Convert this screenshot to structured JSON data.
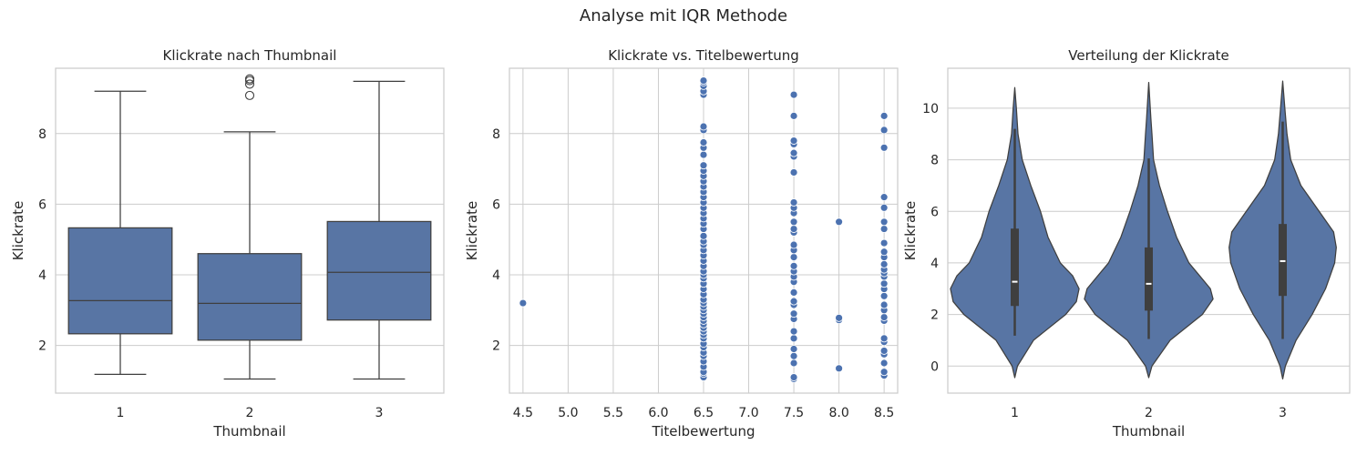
{
  "figure": {
    "suptitle": "Analyse mit IQR Methode"
  },
  "colors": {
    "fill": "#5875a4",
    "edge": "#3f3f3f",
    "point": "#4c72b0",
    "grid": "#cccccc",
    "frame": "#cccccc",
    "median_violin": "#ffffff"
  },
  "chart_data": [
    {
      "type": "box",
      "title": "Klickrate nach Thumbnail",
      "xlabel": "Thumbnail",
      "ylabel": "Klickrate",
      "categories": [
        "1",
        "2",
        "3"
      ],
      "ylim": [
        0.65,
        9.85
      ],
      "yticks": [
        2,
        4,
        6,
        8
      ],
      "grid": true,
      "boxes": [
        {
          "category": "1",
          "whisker_low": 1.18,
          "q1": 2.33,
          "median": 3.27,
          "q3": 5.33,
          "whisker_high": 9.2,
          "outliers": []
        },
        {
          "category": "2",
          "whisker_low": 1.05,
          "q1": 2.15,
          "median": 3.19,
          "q3": 4.6,
          "whisker_high": 8.05,
          "outliers": [
            9.08,
            9.4,
            9.5,
            9.55
          ]
        },
        {
          "category": "3",
          "whisker_low": 1.05,
          "q1": 2.72,
          "median": 4.07,
          "q3": 5.51,
          "whisker_high": 9.48,
          "outliers": []
        }
      ]
    },
    {
      "type": "scatter",
      "title": "Klickrate vs. Titelbewertung",
      "xlabel": "Titelbewertung",
      "ylabel": "Klickrate",
      "xlim": [
        4.35,
        8.65
      ],
      "ylim": [
        0.65,
        9.85
      ],
      "xticks": [
        4.5,
        5.0,
        5.5,
        6.0,
        6.5,
        7.0,
        7.5,
        8.0,
        8.5
      ],
      "xtick_labels": [
        "4.5",
        "5.0",
        "5.5",
        "6.0",
        "6.5",
        "7.0",
        "7.5",
        "8.0",
        "8.5"
      ],
      "yticks": [
        2,
        4,
        6,
        8
      ],
      "grid": true,
      "points": [
        {
          "x": 4.5,
          "y": 3.2
        },
        {
          "x": 6.5,
          "ys": [
            1.1,
            1.2,
            1.25,
            1.4,
            1.55,
            1.7,
            1.8,
            1.95,
            2.05,
            2.2,
            2.3,
            2.4,
            2.5,
            2.6,
            2.7,
            2.8,
            2.9,
            3.0,
            3.1,
            3.2,
            3.3,
            3.45,
            3.6,
            3.75,
            3.9,
            4.0,
            4.1,
            4.25,
            4.4,
            4.55,
            4.7,
            4.85,
            4.95,
            5.1,
            5.3,
            5.45,
            5.6,
            5.75,
            5.9,
            6.05,
            6.2,
            6.35,
            6.5,
            6.65,
            6.8,
            6.95,
            7.1,
            7.4,
            7.6,
            7.75,
            8.1,
            8.2,
            9.1,
            9.2,
            9.35,
            9.45,
            9.5
          ]
        },
        {
          "x": 7.5,
          "ys": [
            1.05,
            1.1,
            1.5,
            1.7,
            1.9,
            2.2,
            2.4,
            2.75,
            2.9,
            3.15,
            3.25,
            3.5,
            3.8,
            3.95,
            4.1,
            4.25,
            4.5,
            4.7,
            4.85,
            5.2,
            5.3,
            5.5,
            5.75,
            5.9,
            6.05,
            6.9,
            7.35,
            7.45,
            7.7,
            7.8,
            8.5,
            9.1
          ]
        },
        {
          "x": 8.0,
          "ys": [
            1.35,
            2.72,
            2.78,
            5.5
          ]
        },
        {
          "x": 8.5,
          "ys": [
            1.15,
            1.25,
            1.5,
            1.75,
            1.85,
            2.1,
            2.2,
            2.7,
            2.8,
            3.0,
            3.15,
            3.4,
            3.6,
            3.75,
            3.95,
            4.05,
            4.15,
            4.3,
            4.5,
            4.65,
            4.9,
            5.3,
            5.5,
            5.9,
            6.2,
            7.6,
            8.1,
            8.5
          ]
        }
      ]
    },
    {
      "type": "violin",
      "title": "Verteilung der Klickrate",
      "xlabel": "Thumbnail",
      "ylabel": "Klickrate",
      "categories": [
        "1",
        "2",
        "3"
      ],
      "ylim": [
        -1.05,
        11.55
      ],
      "yticks": [
        0,
        2,
        4,
        6,
        8,
        10
      ],
      "grid": true,
      "violins": [
        {
          "category": "1",
          "min": 1.18,
          "q1": 2.33,
          "median": 3.27,
          "q3": 5.33,
          "max": 9.2,
          "profile": [
            [
              -0.45,
              0
            ],
            [
              0,
              0.05
            ],
            [
              1,
              0.35
            ],
            [
              2,
              0.95
            ],
            [
              2.5,
              1.15
            ],
            [
              3,
              1.2
            ],
            [
              3.5,
              1.08
            ],
            [
              4,
              0.85
            ],
            [
              5,
              0.62
            ],
            [
              6,
              0.48
            ],
            [
              7,
              0.3
            ],
            [
              8,
              0.14
            ],
            [
              9,
              0.06
            ],
            [
              10,
              0.03
            ],
            [
              10.8,
              0
            ]
          ]
        },
        {
          "category": "2",
          "min": 1.05,
          "q1": 2.15,
          "median": 3.19,
          "q3": 4.6,
          "max": 8.05,
          "profile": [
            [
              -0.45,
              0
            ],
            [
              0,
              0.06
            ],
            [
              1,
              0.4
            ],
            [
              2,
              1.0
            ],
            [
              2.6,
              1.2
            ],
            [
              3,
              1.15
            ],
            [
              3.5,
              0.95
            ],
            [
              4,
              0.75
            ],
            [
              5,
              0.52
            ],
            [
              6,
              0.35
            ],
            [
              7,
              0.2
            ],
            [
              8,
              0.09
            ],
            [
              9,
              0.06
            ],
            [
              9.6,
              0.04
            ],
            [
              11,
              0
            ]
          ]
        },
        {
          "category": "3",
          "min": 1.05,
          "q1": 2.72,
          "median": 4.07,
          "q3": 5.51,
          "max": 9.48,
          "profile": [
            [
              -0.5,
              0
            ],
            [
              0,
              0.05
            ],
            [
              1,
              0.25
            ],
            [
              2,
              0.55
            ],
            [
              3,
              0.8
            ],
            [
              4,
              0.97
            ],
            [
              4.6,
              1.0
            ],
            [
              5.2,
              0.95
            ],
            [
              6,
              0.68
            ],
            [
              7,
              0.34
            ],
            [
              8,
              0.15
            ],
            [
              9,
              0.08
            ],
            [
              10,
              0.04
            ],
            [
              11.05,
              0
            ]
          ]
        }
      ]
    }
  ]
}
